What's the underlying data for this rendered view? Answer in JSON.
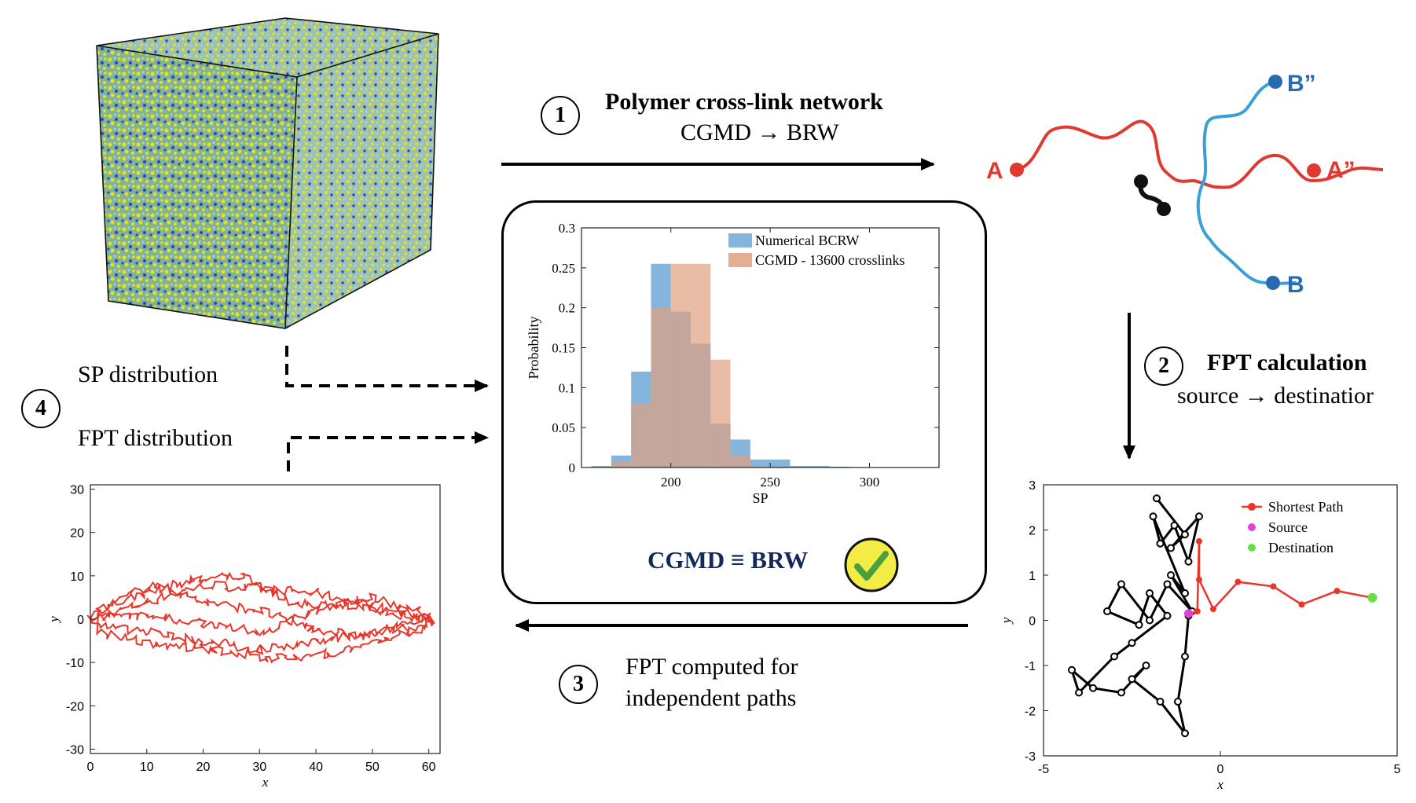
{
  "step1": {
    "number": "1",
    "title": "Polymer cross-link network",
    "subtitle": "CGMD → BRW"
  },
  "step2": {
    "number": "2",
    "title": "FPT calculation",
    "subtitle": "source → destinatior"
  },
  "step3": {
    "number": "3",
    "line1": "FPT computed for",
    "line2": "independent paths"
  },
  "step4": {
    "number": "4",
    "sp_label": "SP distribution",
    "fpt_label": "FPT distribution"
  },
  "network": {
    "labels": {
      "a": "A",
      "a2": "A”",
      "b": "B",
      "b2": "B”"
    },
    "colors": {
      "red": "#e03a30",
      "blue": "#3aa0d8"
    }
  },
  "equivalence": {
    "text": "CGMD ≡ BRW",
    "check_icon": "check-icon",
    "check_color": "#f2ec45"
  },
  "chart_data": [
    {
      "type": "bar",
      "xlabel": "SP",
      "ylabel": "Probability",
      "xlim": [
        155,
        335
      ],
      "ylim": [
        0,
        0.3
      ],
      "xticks": [
        200,
        250,
        300
      ],
      "yticks": [
        0,
        0.05,
        0.1,
        0.15,
        0.2,
        0.25,
        0.3
      ],
      "bin_edges": [
        160,
        170,
        180,
        190,
        200,
        210,
        220,
        230,
        240,
        250,
        260,
        270,
        280,
        290
      ],
      "series": [
        {
          "name": "Numerical BCRW",
          "color": "#6fa8d6",
          "values": [
            0.002,
            0.015,
            0.12,
            0.255,
            0.195,
            0.155,
            0.055,
            0.035,
            0.01,
            0.01,
            0.002,
            0.002,
            0.001
          ]
        },
        {
          "name": "CGMD - 13600 crosslinks",
          "color": "#e0a080",
          "values": [
            0,
            0.008,
            0.08,
            0.2,
            0.255,
            0.255,
            0.135,
            0.015,
            0.002,
            0.0,
            0.0,
            0.0,
            0.0
          ]
        }
      ],
      "legend": "top-right"
    },
    {
      "type": "line",
      "xlabel": "x",
      "ylabel": "y",
      "xlim": [
        0,
        62
      ],
      "ylim": [
        -31,
        31
      ],
      "xticks": [
        0,
        10,
        20,
        30,
        40,
        50,
        60
      ],
      "yticks": [
        -30,
        -20,
        -10,
        0,
        10,
        20,
        30
      ],
      "series": [
        {
          "color": "#e8362a"
        }
      ]
    },
    {
      "type": "scatter",
      "xlabel": "x",
      "ylabel": "y",
      "xlim": [
        -5,
        5
      ],
      "ylim": [
        -3,
        3
      ],
      "xticks": [
        -5,
        0,
        5
      ],
      "yticks": [
        -3,
        -2,
        -1,
        0,
        1,
        2,
        3
      ],
      "legend": "top-right",
      "series": [
        {
          "name": "Shortest Path",
          "color": "#e8362a",
          "points": [
            [
              -0.85,
              0.15
            ],
            [
              -0.65,
              0.2
            ],
            [
              -0.6,
              1.75
            ],
            [
              -0.6,
              0.9
            ],
            [
              -0.2,
              0.25
            ],
            [
              0.5,
              0.85
            ],
            [
              1.5,
              0.75
            ],
            [
              2.3,
              0.35
            ],
            [
              3.3,
              0.65
            ],
            [
              4.3,
              0.5
            ]
          ]
        },
        {
          "name": "Source",
          "color": "#e040e0",
          "points": [
            [
              -0.9,
              0.15
            ]
          ]
        },
        {
          "name": "Destination",
          "color": "#66e040",
          "points": [
            [
              4.3,
              0.5
            ]
          ]
        },
        {
          "name": "",
          "color": "#000000",
          "points": [
            [
              -1.8,
              2.7
            ],
            [
              -1.0,
              1.9
            ],
            [
              -1.4,
              1.6
            ],
            [
              -0.6,
              2.3
            ],
            [
              -0.9,
              1.3
            ],
            [
              -1.3,
              2.1
            ],
            [
              -1.7,
              1.7
            ],
            [
              -1.9,
              2.3
            ],
            [
              -1.0,
              0.6
            ],
            [
              -1.4,
              1.0
            ],
            [
              -0.8,
              0.2
            ],
            [
              -1.5,
              0.8
            ],
            [
              -2.0,
              0.0
            ],
            [
              -2.8,
              0.8
            ],
            [
              -3.2,
              0.2
            ],
            [
              -2.3,
              -0.1
            ],
            [
              -2.0,
              0.6
            ],
            [
              -1.5,
              0.1
            ],
            [
              -2.5,
              -0.5
            ],
            [
              -3.0,
              -0.8
            ],
            [
              -4.0,
              -1.6
            ],
            [
              -4.2,
              -1.1
            ],
            [
              -3.6,
              -1.5
            ],
            [
              -2.8,
              -1.6
            ],
            [
              -2.1,
              -1.0
            ],
            [
              -2.5,
              -1.3
            ],
            [
              -1.7,
              -1.8
            ],
            [
              -1.0,
              -2.5
            ],
            [
              -1.2,
              -1.8
            ],
            [
              -1.0,
              -0.8
            ],
            [
              -0.9,
              0.1
            ]
          ]
        }
      ]
    }
  ]
}
